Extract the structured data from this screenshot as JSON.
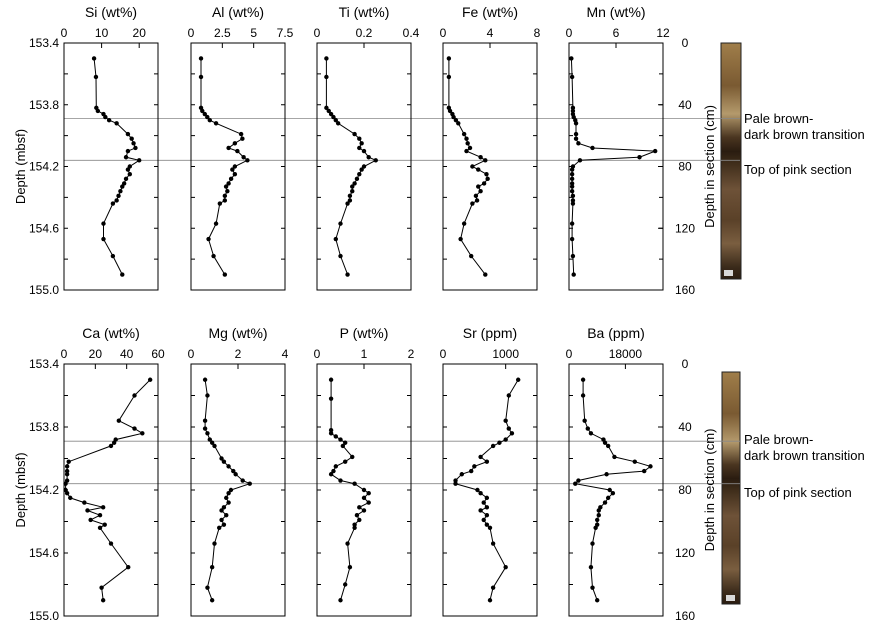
{
  "chart_data": [
    {
      "type": "line",
      "ylabel": "Depth (mbsf)",
      "ylim": [
        153.4,
        155.0
      ],
      "yticks": [
        "153.4",
        "153.8",
        "154.2",
        "154.6",
        "155.0"
      ],
      "y2label": "Depth in section (cm)",
      "y2ticks": [
        "0",
        "40",
        "80",
        "120",
        "160"
      ],
      "annotations": [
        "Pale brown-",
        "dark brown transition",
        "Top of pink section"
      ],
      "hlines": [
        153.89,
        154.16
      ],
      "panels": [
        {
          "title": "Si (wt%)",
          "xlim": [
            0,
            25
          ],
          "xticks": [
            "0",
            "10",
            "20"
          ],
          "depth": [
            153.5,
            153.62,
            153.82,
            153.84,
            153.86,
            153.88,
            153.9,
            153.92,
            153.99,
            154.02,
            154.05,
            154.08,
            154.1,
            154.14,
            154.16,
            154.2,
            154.22,
            154.25,
            154.28,
            154.31,
            154.33,
            154.36,
            154.39,
            154.42,
            154.44,
            154.57,
            154.67,
            154.78,
            154.9
          ],
          "values": [
            8,
            8.5,
            8.6,
            9,
            10.5,
            11,
            12,
            14,
            17,
            18,
            18.5,
            19,
            17,
            16.5,
            20,
            17.5,
            17,
            17.5,
            16.5,
            16,
            15.5,
            15,
            14.5,
            14,
            13,
            10.5,
            10.5,
            13,
            15.5
          ]
        },
        {
          "title": "Al (wt%)",
          "xlim": [
            0,
            7.5
          ],
          "xticks": [
            "0",
            "2.5",
            "5",
            "7.5"
          ],
          "depth": [
            153.5,
            153.62,
            153.82,
            153.84,
            153.86,
            153.88,
            153.9,
            153.92,
            153.99,
            154.02,
            154.05,
            154.08,
            154.1,
            154.14,
            154.16,
            154.2,
            154.22,
            154.25,
            154.28,
            154.31,
            154.33,
            154.36,
            154.39,
            154.42,
            154.44,
            154.57,
            154.67,
            154.78,
            154.9
          ],
          "values": [
            0.8,
            0.8,
            0.8,
            0.9,
            1.1,
            1.3,
            1.5,
            2,
            4,
            4.1,
            3.5,
            3,
            3.7,
            4.2,
            4.5,
            3.5,
            3.3,
            3.5,
            3.2,
            3,
            2.8,
            2.9,
            2.7,
            2.7,
            2.3,
            2,
            1.4,
            1.8,
            2.7
          ]
        },
        {
          "title": "Ti (wt%)",
          "xlim": [
            0,
            0.4
          ],
          "xticks": [
            "0",
            "0.2",
            "0.4"
          ],
          "depth": [
            153.5,
            153.62,
            153.82,
            153.84,
            153.86,
            153.88,
            153.9,
            153.92,
            153.99,
            154.02,
            154.05,
            154.08,
            154.1,
            154.14,
            154.16,
            154.2,
            154.22,
            154.25,
            154.28,
            154.31,
            154.33,
            154.36,
            154.39,
            154.42,
            154.44,
            154.57,
            154.67,
            154.78,
            154.9
          ],
          "values": [
            0.04,
            0.04,
            0.04,
            0.05,
            0.06,
            0.07,
            0.08,
            0.09,
            0.16,
            0.18,
            0.19,
            0.18,
            0.2,
            0.22,
            0.25,
            0.2,
            0.19,
            0.18,
            0.17,
            0.16,
            0.15,
            0.15,
            0.14,
            0.14,
            0.13,
            0.1,
            0.08,
            0.1,
            0.13
          ]
        },
        {
          "title": "Fe (wt%)",
          "xlim": [
            0,
            8
          ],
          "xticks": [
            "0",
            "4",
            "8"
          ],
          "depth": [
            153.5,
            153.62,
            153.82,
            153.84,
            153.86,
            153.88,
            153.9,
            153.92,
            153.99,
            154.02,
            154.05,
            154.08,
            154.1,
            154.14,
            154.16,
            154.2,
            154.22,
            154.25,
            154.28,
            154.31,
            154.33,
            154.36,
            154.39,
            154.42,
            154.44,
            154.57,
            154.67,
            154.78,
            154.9
          ],
          "values": [
            0.5,
            0.5,
            0.5,
            0.6,
            0.8,
            0.9,
            1.1,
            1.3,
            1.8,
            2,
            2.1,
            2.3,
            2,
            3.2,
            3.6,
            2.5,
            3,
            3.7,
            3.8,
            3.5,
            3,
            3.2,
            2.8,
            2.9,
            2.5,
            1.8,
            1.5,
            2.4,
            3.6
          ]
        },
        {
          "title": "Mn (wt%)",
          "xlim": [
            0,
            12
          ],
          "xticks": [
            "0",
            "6",
            "12"
          ],
          "depth": [
            153.5,
            153.62,
            153.82,
            153.84,
            153.86,
            153.88,
            153.9,
            153.92,
            153.99,
            154.02,
            154.05,
            154.08,
            154.1,
            154.14,
            154.16,
            154.2,
            154.22,
            154.25,
            154.28,
            154.31,
            154.33,
            154.36,
            154.39,
            154.42,
            154.44,
            154.57,
            154.67,
            154.78,
            154.9
          ],
          "values": [
            0.3,
            0.4,
            0.5,
            0.5,
            0.5,
            0.6,
            0.8,
            0.9,
            0.9,
            0.9,
            1.2,
            3,
            11,
            9,
            1.4,
            0.5,
            0.4,
            0.4,
            0.4,
            0.4,
            0.4,
            0.4,
            0.5,
            0.5,
            0.5,
            0.4,
            0.4,
            0.5,
            0.6
          ]
        },
        {
          "title": "Ca (wt%)",
          "xlim": [
            0,
            60
          ],
          "xticks": [
            "0",
            "20",
            "40",
            "60"
          ],
          "depth": [
            153.5,
            153.6,
            153.76,
            153.81,
            153.84,
            153.88,
            153.9,
            153.92,
            154.02,
            154.05,
            154.08,
            154.1,
            154.14,
            154.16,
            154.2,
            154.22,
            154.25,
            154.28,
            154.31,
            154.33,
            154.36,
            154.39,
            154.42,
            154.44,
            154.54,
            154.69,
            154.82,
            154.9
          ],
          "values": [
            55,
            45,
            35,
            45,
            50,
            33,
            32,
            30,
            3,
            2,
            2,
            2,
            2,
            1,
            1,
            2,
            4,
            13,
            25,
            15,
            23,
            17,
            26,
            23,
            30,
            41,
            24,
            25
          ]
        },
        {
          "title": "Mg (wt%)",
          "xlim": [
            0,
            4
          ],
          "xticks": [
            "0",
            "2",
            "4"
          ],
          "depth": [
            153.5,
            153.6,
            153.76,
            153.81,
            153.84,
            153.88,
            153.9,
            153.92,
            154.0,
            154.02,
            154.05,
            154.08,
            154.1,
            154.14,
            154.16,
            154.2,
            154.22,
            154.25,
            154.28,
            154.31,
            154.33,
            154.36,
            154.39,
            154.42,
            154.44,
            154.54,
            154.69,
            154.82,
            154.9
          ],
          "values": [
            0.6,
            0.7,
            0.6,
            0.6,
            0.7,
            0.8,
            0.9,
            1,
            1.3,
            1.4,
            1.6,
            1.8,
            1.9,
            2.2,
            2.5,
            1.7,
            1.6,
            1.5,
            1.6,
            1.4,
            1.3,
            1.5,
            1.3,
            1.4,
            1.2,
            1,
            0.9,
            0.7,
            0.9
          ]
        },
        {
          "title": "P (wt%)",
          "xlim": [
            0,
            2
          ],
          "xticks": [
            "0",
            "1",
            "2"
          ],
          "depth": [
            153.5,
            153.62,
            153.82,
            153.84,
            153.86,
            153.88,
            153.9,
            153.92,
            153.99,
            154.02,
            154.05,
            154.08,
            154.1,
            154.14,
            154.16,
            154.2,
            154.22,
            154.25,
            154.28,
            154.31,
            154.33,
            154.36,
            154.39,
            154.42,
            154.44,
            154.54,
            154.69,
            154.8,
            154.9
          ],
          "values": [
            0.3,
            0.3,
            0.3,
            0.3,
            0.4,
            0.5,
            0.6,
            0.55,
            0.75,
            0.6,
            0.4,
            0.35,
            0.3,
            0.5,
            0.8,
            1.0,
            1.1,
            1.0,
            1.1,
            0.9,
            1.0,
            0.85,
            0.9,
            0.8,
            0.8,
            0.65,
            0.7,
            0.6,
            0.5
          ]
        },
        {
          "title": "Sr (ppm)",
          "xlim": [
            0,
            1500
          ],
          "xticks": [
            "0",
            "1000"
          ],
          "depth": [
            153.5,
            153.6,
            153.76,
            153.81,
            153.84,
            153.88,
            153.9,
            153.92,
            153.99,
            154.02,
            154.05,
            154.08,
            154.1,
            154.14,
            154.16,
            154.2,
            154.22,
            154.25,
            154.28,
            154.31,
            154.33,
            154.36,
            154.39,
            154.42,
            154.44,
            154.54,
            154.69,
            154.82,
            154.9
          ],
          "values": [
            1200,
            1050,
            1000,
            1050,
            1100,
            1000,
            900,
            800,
            600,
            700,
            500,
            450,
            300,
            200,
            200,
            550,
            600,
            700,
            650,
            700,
            600,
            700,
            650,
            700,
            750,
            800,
            1000,
            800,
            750
          ]
        },
        {
          "title": "Ba (ppm)",
          "xlim": [
            0,
            30000
          ],
          "xticks": [
            "0",
            "18000"
          ],
          "depth": [
            153.5,
            153.6,
            153.76,
            153.81,
            153.84,
            153.88,
            153.9,
            153.92,
            153.99,
            154.02,
            154.05,
            154.08,
            154.1,
            154.14,
            154.16,
            154.2,
            154.22,
            154.25,
            154.28,
            154.31,
            154.33,
            154.36,
            154.39,
            154.42,
            154.44,
            154.54,
            154.69,
            154.82,
            154.9
          ],
          "values": [
            4500,
            4500,
            5000,
            6000,
            7000,
            11000,
            11500,
            12500,
            14500,
            21000,
            26000,
            24000,
            12000,
            3000,
            2000,
            13000,
            14000,
            12500,
            11500,
            10000,
            9500,
            9500,
            9000,
            9000,
            8500,
            7500,
            7000,
            7500,
            9000
          ]
        }
      ]
    }
  ]
}
